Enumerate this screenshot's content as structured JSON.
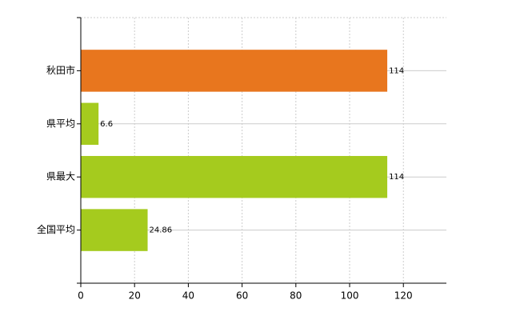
{
  "chart_data": {
    "type": "barh",
    "categories": [
      "秋田市",
      "県平均",
      "県最大",
      "全国平均"
    ],
    "values": [
      114,
      6.6,
      114,
      24.86
    ],
    "colors": [
      "#e8761e",
      "#a5cb1e",
      "#a5cb1e",
      "#a5cb1e"
    ],
    "xlim": [
      0,
      136
    ],
    "xticks": [
      0,
      20,
      40,
      60,
      80,
      100,
      120
    ],
    "grid": true
  }
}
